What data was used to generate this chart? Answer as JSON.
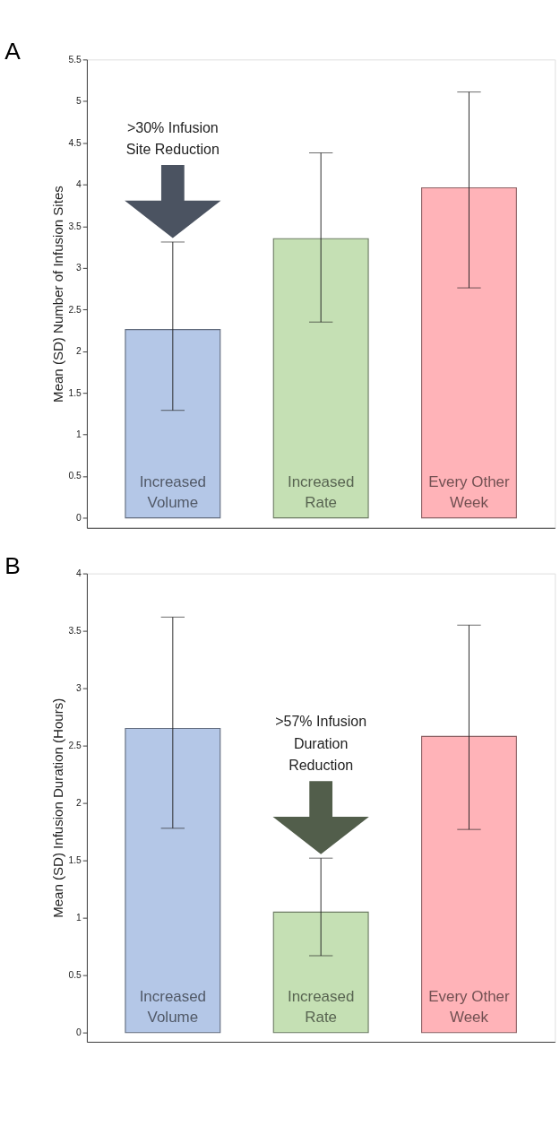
{
  "chart_data": [
    {
      "type": "bar",
      "title": "A",
      "ylabel": "Mean (SD) Number of Infusion Sites",
      "categories": [
        "Increased Volume",
        "Increased Rate",
        "Every Other Week"
      ],
      "values": [
        2.26,
        3.35,
        3.96
      ],
      "errors": [
        [
          1.29,
          3.31
        ],
        [
          2.35,
          4.38
        ],
        [
          2.76,
          5.11
        ]
      ],
      "colors": [
        "#b4c7e7",
        "#c5e0b4",
        "#ffb3b8"
      ],
      "ylim": [
        -0.12,
        5.5
      ],
      "yticks": [
        0,
        0.5,
        1,
        1.5,
        2,
        2.5,
        3,
        3.5,
        4,
        4.5,
        5,
        5.5
      ],
      "tick_labels": "y",
      "grid": false,
      "annotations": [
        ">30% Infusion Site Reduction"
      ]
    },
    {
      "type": "bar",
      "title": "B",
      "ylabel": "Mean (SD) Infusion Duration (Hours)",
      "categories": [
        "Increased Volume",
        "Increased Rate",
        "Every Other Week"
      ],
      "values": [
        2.65,
        1.05,
        2.58
      ],
      "errors": [
        [
          1.78,
          3.62
        ],
        [
          0.67,
          1.52
        ],
        [
          1.77,
          3.55
        ]
      ],
      "colors": [
        "#b4c7e7",
        "#c5e0b4",
        "#ffb3b8"
      ],
      "ylim": [
        -0.08,
        4
      ],
      "yticks": [
        0,
        0.5,
        1,
        1.5,
        2,
        2.5,
        3,
        3.5,
        4
      ],
      "tick_labels": "y",
      "grid": false,
      "annotations": [
        ">57% Infusion Duration Reduction"
      ]
    }
  ]
}
